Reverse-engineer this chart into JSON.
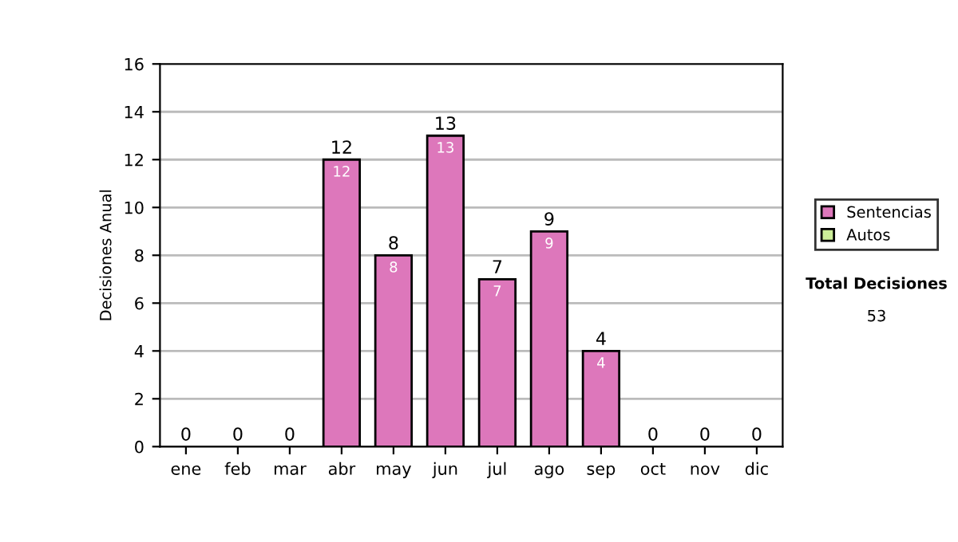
{
  "chart_data": {
    "type": "bar",
    "stacked": true,
    "ylabel": "Decisiones Anual",
    "categories": [
      "ene",
      "feb",
      "mar",
      "abr",
      "may",
      "jun",
      "jul",
      "ago",
      "sep",
      "oct",
      "nov",
      "dic"
    ],
    "series": [
      {
        "name": "Sentencias",
        "color": "#dd77bb",
        "values": [
          0,
          0,
          0,
          12,
          8,
          13,
          7,
          9,
          4,
          0,
          0,
          0
        ],
        "value_labels": [
          null,
          null,
          null,
          "12",
          "8",
          "13",
          "7",
          "9",
          "4",
          null,
          null,
          null
        ]
      },
      {
        "name": "Autos",
        "color": "#ccee99",
        "values": [
          0,
          0,
          0,
          0,
          0,
          0,
          0,
          0,
          0,
          0,
          0,
          0
        ]
      }
    ],
    "totals": [
      "0",
      "0",
      "0",
      "12",
      "8",
      "13",
      "7",
      "9",
      "4",
      "0",
      "0",
      "0"
    ],
    "ylim": [
      0,
      16
    ],
    "yticks": [
      0,
      2,
      4,
      6,
      8,
      10,
      12,
      14,
      16
    ],
    "grid": "y",
    "legend": "right",
    "annotations": [
      "Total Decisiones",
      "53"
    ]
  }
}
